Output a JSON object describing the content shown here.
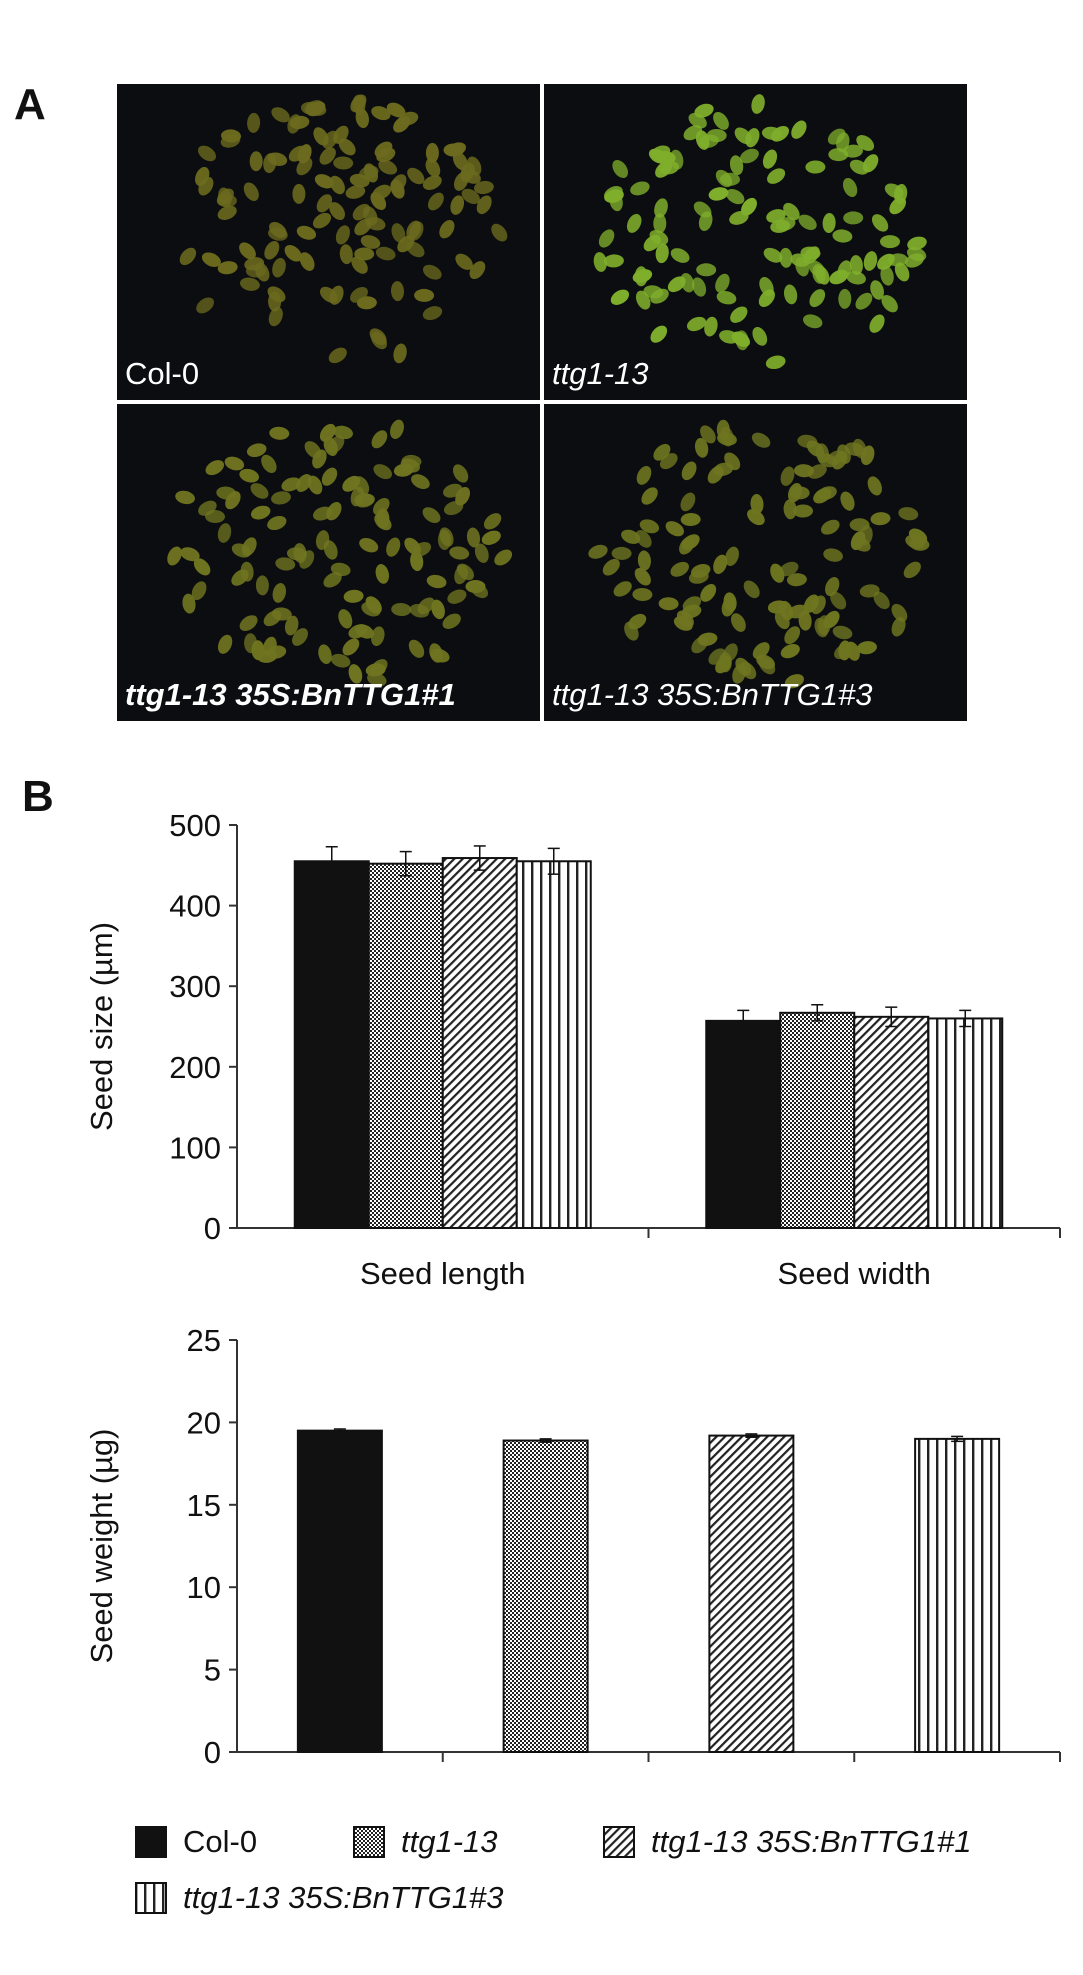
{
  "panel_a": {
    "letter": "A",
    "photos": [
      {
        "label": "Col-0",
        "style": "normal",
        "seed_color": "#6b6a1e"
      },
      {
        "label": "ttg1-13",
        "style": "italic",
        "seed_color": "#7fae2c"
      },
      {
        "label": "ttg1-13 35S:BnTTG1#1",
        "style": "bolditalic",
        "seed_color": "#6f7420"
      },
      {
        "label": "ttg1-13 35S:BnTTG1#3",
        "style": "italic",
        "seed_color": "#6e7520"
      }
    ]
  },
  "panel_b": {
    "letter": "B"
  },
  "legend": [
    {
      "label": "Col-0",
      "pattern": "solid",
      "italic": false
    },
    {
      "label": "ttg1-13",
      "pattern": "checker",
      "italic": true
    },
    {
      "label": "ttg1-13 35S:BnTTG1#1",
      "pattern": "diagonal",
      "italic": true
    },
    {
      "label": "ttg1-13 35S:BnTTG1#3",
      "pattern": "vertical",
      "italic": true
    }
  ],
  "chart_data": [
    {
      "type": "bar",
      "categories": [
        "Seed length",
        "Seed width"
      ],
      "ylabel": "Seed size (µm)",
      "ylim": [
        0,
        500
      ],
      "yticks": [
        "0",
        "100",
        "200",
        "300",
        "400",
        "500"
      ],
      "series": [
        {
          "name": "Col-0",
          "values": [
            455,
            257
          ],
          "errors": [
            18,
            13
          ]
        },
        {
          "name": "ttg1-13",
          "values": [
            452,
            267
          ],
          "errors": [
            15,
            10
          ]
        },
        {
          "name": "ttg1-13 35S:BnTTG1#1",
          "values": [
            459,
            262
          ],
          "errors": [
            15,
            12
          ]
        },
        {
          "name": "ttg1-13 35S:BnTTG1#3",
          "values": [
            455,
            260
          ],
          "errors": [
            16,
            10
          ]
        }
      ]
    },
    {
      "type": "bar",
      "categories": [
        "Col-0",
        "ttg1-13",
        "ttg1-13 35S:BnTTG1#1",
        "ttg1-13 35S:BnTTG1#3"
      ],
      "ylabel": "Seed weight (µg)",
      "ylim": [
        0,
        25
      ],
      "yticks": [
        "0",
        "5",
        "10",
        "15",
        "20",
        "25"
      ],
      "series": [
        {
          "name": "Seed weight",
          "values": [
            19.5,
            18.9,
            19.2,
            19.0
          ],
          "errors": [
            0.1,
            0.1,
            0.1,
            0.15
          ]
        }
      ]
    }
  ]
}
